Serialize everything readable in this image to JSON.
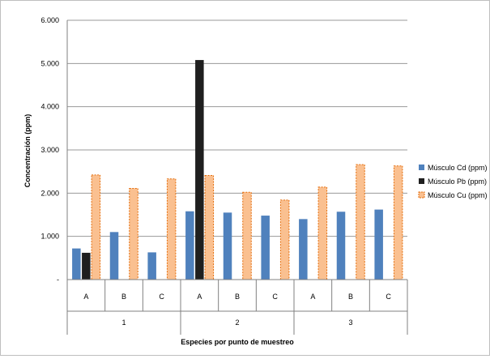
{
  "chart_data": {
    "type": "bar",
    "groups": [
      "1",
      "2",
      "3"
    ],
    "categories": [
      "A",
      "B",
      "C",
      "A",
      "B",
      "C",
      "A",
      "B",
      "C"
    ],
    "series": [
      {
        "name": "Músculo Cd (ppm)",
        "values": [
          0.72,
          1.1,
          0.63,
          1.58,
          1.55,
          1.48,
          1.4,
          1.57,
          1.62
        ]
      },
      {
        "name": "Músculo Pb (ppm)",
        "values": [
          0.62,
          0,
          0,
          5.08,
          0,
          0,
          0,
          0,
          0
        ]
      },
      {
        "name": "Músculo Cu (ppm)",
        "values": [
          2.42,
          2.11,
          2.33,
          2.41,
          2.02,
          1.84,
          2.14,
          2.66,
          2.63
        ]
      }
    ],
    "ylim": [
      0,
      6
    ],
    "y_ticks": [
      0,
      1,
      2,
      3,
      4,
      5,
      6
    ],
    "y_tick_labels": [
      "-",
      "1.000",
      "2.000",
      "3.000",
      "4.000",
      "5.000",
      "6.000"
    ],
    "xlabel": "Especies por punto de muestreo",
    "ylabel": "Concentración (ppm)",
    "grid": true,
    "legend_position": "right",
    "colors": {
      "cd": "#4f81bd",
      "pb": "#1f1f1f",
      "cu": "#fac090",
      "cu_border": "#e46c0a",
      "grid": "#9a9a9a"
    }
  }
}
